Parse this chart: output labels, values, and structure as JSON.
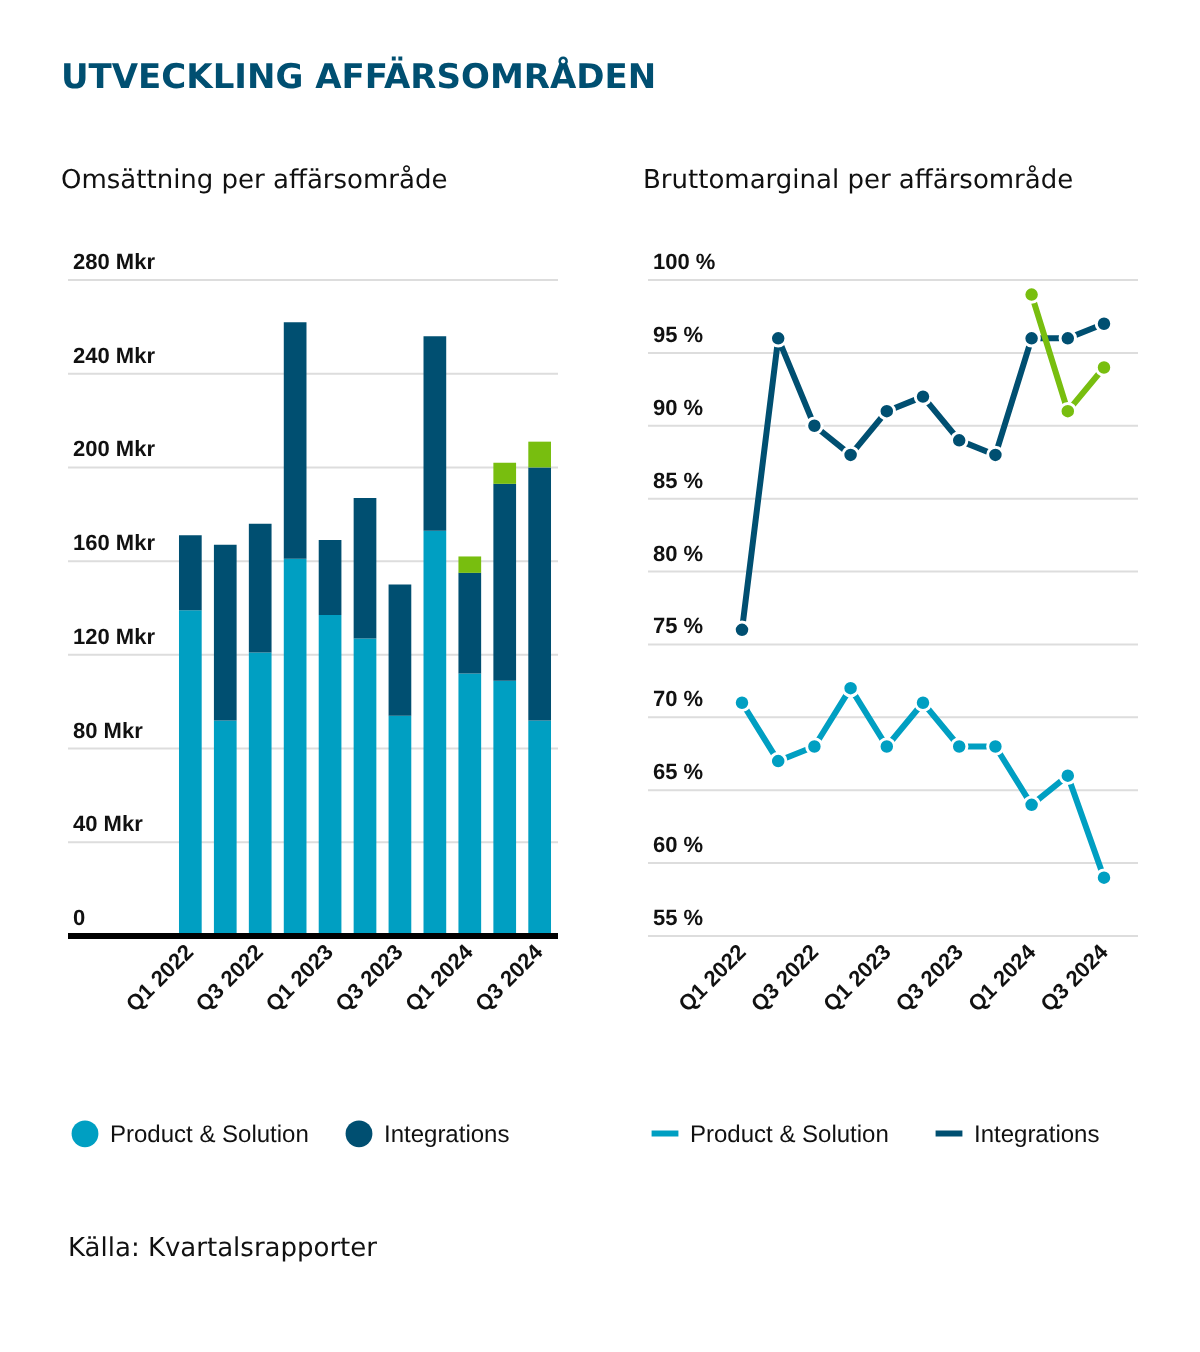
{
  "chart_data": [
    {
      "type": "bar",
      "stacked": true,
      "title": "UTVECKLING AFFÄRSOMRÅDEN",
      "subtitle": "Omsättning per affärsområde",
      "annotations": [
        "Källa: Kvartalsrapporter"
      ],
      "categories": [
        "Q1 2022",
        null,
        "Q3 2022",
        null,
        "Q1 2023",
        null,
        "Q3 2023",
        null,
        "Q1 2024",
        null,
        "Q3 2024"
      ],
      "series": [
        {
          "name": "Product & Solution",
          "color": "#009fc2",
          "values": [
            139,
            92,
            121,
            161,
            137,
            127,
            94,
            173,
            112,
            109,
            92
          ]
        },
        {
          "name": "Integrations",
          "color": "#004f71",
          "values": [
            32,
            75,
            55,
            101,
            32,
            60,
            56,
            83,
            43,
            84,
            108
          ]
        },
        {
          "color": "#78be0f",
          "values": [
            null,
            null,
            null,
            null,
            null,
            null,
            null,
            null,
            7,
            9,
            11
          ]
        }
      ],
      "ylim": [
        0,
        280
      ],
      "yticks": [
        0,
        {
          "value": 40,
          "label": "40 Mkr"
        },
        {
          "value": 80,
          "label": "80 Mkr"
        },
        {
          "value": 120,
          "label": "120 Mkr"
        },
        {
          "value": 160,
          "label": "160 Mkr"
        },
        {
          "value": 200,
          "label": "200 Mkr"
        },
        {
          "value": 240,
          "label": "240 Mkr"
        },
        {
          "value": 280,
          "label": "280 Mkr"
        }
      ],
      "grid": "y",
      "legend": "bottom"
    },
    {
      "type": "line",
      "title": "Bruttomarginal per affärsområde",
      "categories": [
        "Q1 2022",
        null,
        "Q3 2022",
        null,
        "Q1 2023",
        null,
        "Q3 2023",
        null,
        "Q1 2024",
        null,
        "Q3 2024"
      ],
      "series": [
        {
          "name": "Product & Solution",
          "color": "#009fc2",
          "values": [
            71,
            67,
            68,
            72,
            68,
            71,
            68,
            68,
            64,
            66,
            59
          ]
        },
        {
          "name": "Integrations",
          "color": "#004f71",
          "values": [
            76,
            96,
            90,
            88,
            91,
            92,
            89,
            88,
            96,
            96,
            97
          ]
        },
        {
          "color": "#78be0f",
          "values": [
            null,
            null,
            null,
            null,
            null,
            null,
            null,
            null,
            99,
            91,
            94
          ]
        }
      ],
      "ylim": [
        55,
        100
      ],
      "yticks": [
        {
          "value": 55,
          "label": "55 %"
        },
        {
          "value": 60,
          "label": "60 %"
        },
        {
          "value": 65,
          "label": "65 %"
        },
        {
          "value": 70,
          "label": "70 %"
        },
        {
          "value": 75,
          "label": "75 %"
        },
        {
          "value": 80,
          "label": "80 %"
        },
        {
          "value": 85,
          "label": "85 %"
        },
        {
          "value": 90,
          "label": "90 %"
        },
        {
          "value": 95,
          "label": "95 %"
        },
        {
          "value": 100,
          "label": "100 %"
        }
      ],
      "grid": "y",
      "legend": "bottom",
      "marker": "circle",
      "line_style": "solid"
    }
  ]
}
